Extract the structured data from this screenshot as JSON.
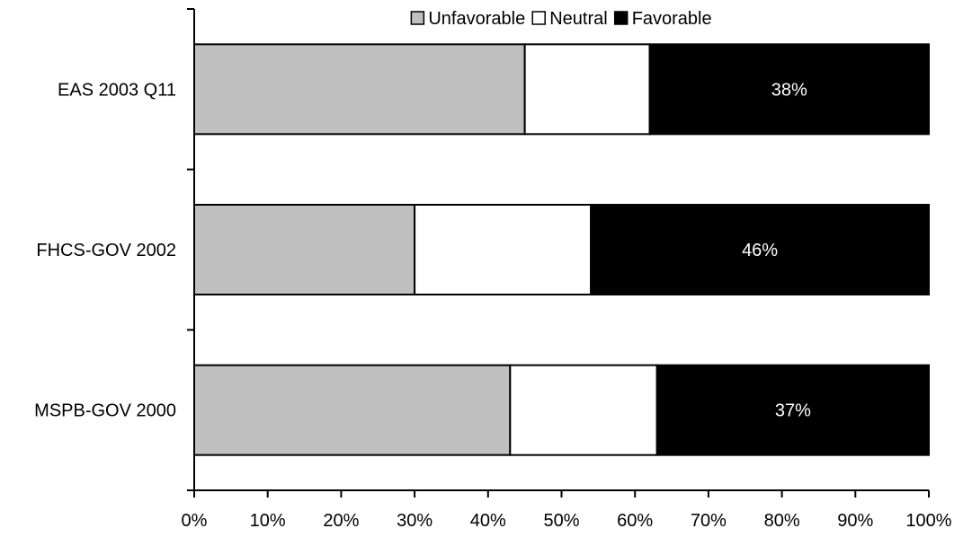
{
  "chart_data": {
    "type": "bar",
    "orientation": "horizontal",
    "stacked": "percent",
    "categories": [
      "EAS 2003 Q11",
      "FHCS-GOV 2002",
      "MSPB-GOV 2000"
    ],
    "series": [
      {
        "name": "Unfavorable",
        "color": "#c0c0c0",
        "values": [
          45,
          30,
          43
        ]
      },
      {
        "name": "Neutral",
        "color": "#ffffff",
        "values": [
          17,
          24,
          20
        ]
      },
      {
        "name": "Favorable",
        "color": "#000000",
        "values": [
          38,
          46,
          37
        ]
      }
    ],
    "data_labels": {
      "series": "Favorable",
      "values": [
        "38%",
        "46%",
        "37%"
      ]
    },
    "xlim": [
      0,
      100
    ],
    "xticks": [
      "0%",
      "10%",
      "20%",
      "30%",
      "40%",
      "50%",
      "60%",
      "70%",
      "80%",
      "90%",
      "100%"
    ],
    "legend": {
      "position": "top",
      "items": [
        "Unfavorable",
        "Neutral",
        "Favorable"
      ]
    },
    "grid": false,
    "title": "",
    "xlabel": "",
    "ylabel": ""
  }
}
